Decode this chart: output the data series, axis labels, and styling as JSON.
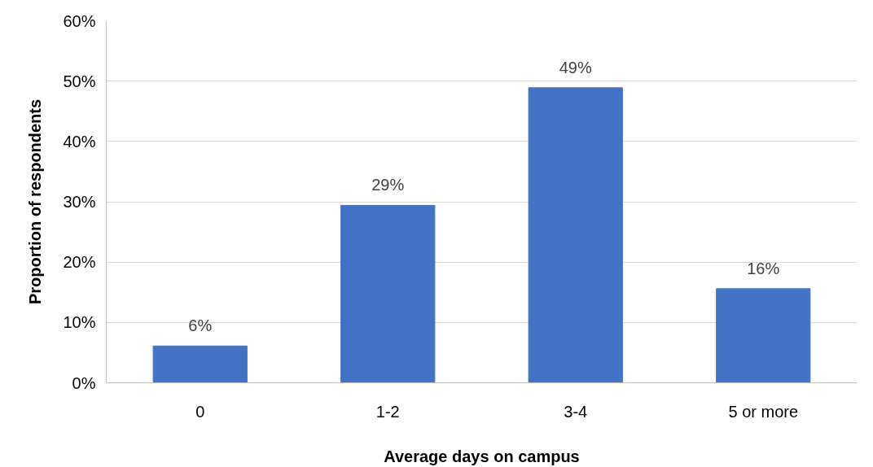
{
  "chart_data": {
    "type": "bar",
    "xlabel": "Average days on campus",
    "ylabel": "Proportion of respondents",
    "categories": [
      "0",
      "1-2",
      "3-4",
      "5 or more"
    ],
    "values": [
      6.1,
      29.4,
      48.9,
      15.6
    ],
    "value_labels": [
      "6%",
      "29%",
      "49%",
      "16%"
    ],
    "color": "#4472c4",
    "ylim": [
      0,
      60
    ],
    "yticks": [
      {
        "value": 0,
        "label": "0%"
      },
      {
        "value": 10,
        "label": "10%"
      },
      {
        "value": 20,
        "label": "20%"
      },
      {
        "value": 30,
        "label": "30%"
      },
      {
        "value": 40,
        "label": "40%"
      },
      {
        "value": 50,
        "label": "50%"
      },
      {
        "value": 60,
        "label": "60%"
      }
    ],
    "grid": "y"
  }
}
